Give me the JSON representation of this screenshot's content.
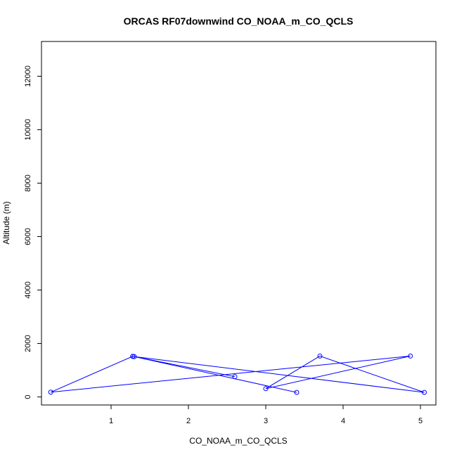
{
  "chart_data": {
    "type": "line",
    "title": "ORCAS RF07downwind CO_NOAA_m_CO_QCLS",
    "xlabel": "CO_NOAA_m_CO_QCLS",
    "ylabel": "Altitude (m)",
    "xlim": [
      0.1,
      5.2
    ],
    "ylim": [
      -300,
      13300
    ],
    "x_ticks": [
      1,
      2,
      3,
      4,
      5
    ],
    "y_ticks": [
      0,
      2000,
      4000,
      6000,
      8000,
      10000,
      12000
    ],
    "grid": false,
    "legend": "none",
    "series": [
      {
        "color": "#0000ff",
        "markers": "open-circle",
        "points": [
          {
            "x": 3.4,
            "y": 170
          },
          {
            "x": 1.28,
            "y": 1520
          },
          {
            "x": 1.3,
            "y": 1510
          },
          {
            "x": 5.05,
            "y": 170
          },
          {
            "x": 3.7,
            "y": 1530
          },
          {
            "x": 3.0,
            "y": 310
          },
          {
            "x": 4.87,
            "y": 1530
          },
          {
            "x": 0.22,
            "y": 180
          },
          {
            "x": 1.28,
            "y": 1520
          },
          {
            "x": 2.6,
            "y": 760
          }
        ]
      }
    ]
  }
}
